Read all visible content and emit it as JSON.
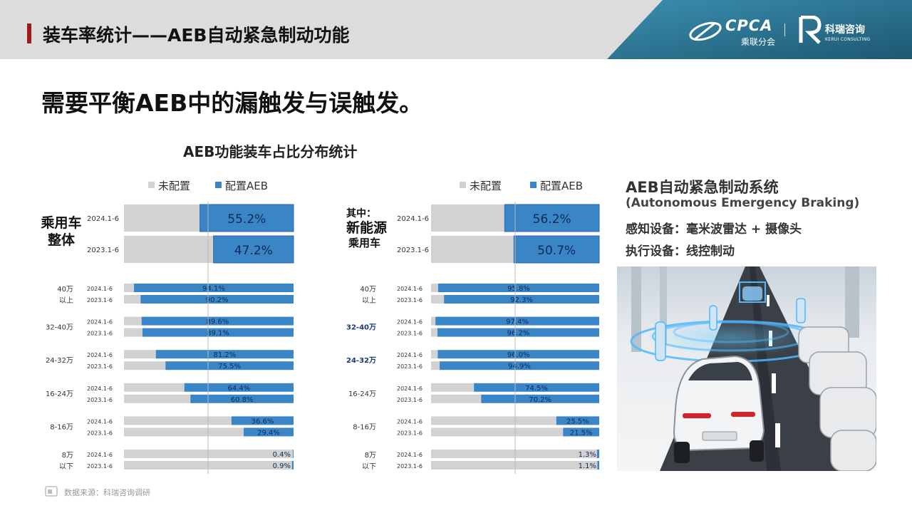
{
  "header": {
    "title": "装车率统计——AEB自动紧急制动功能"
  },
  "logos": {
    "cpca_text": "CPCA",
    "cpca_sub": "乘联分会",
    "kerui_name": "科瑞咨询",
    "kerui_sub": "KERUI CONSULTING"
  },
  "headline": "需要平衡AEB中的漏触发与误触发。",
  "chart_title": "AEB功能装车占比分布统计",
  "legend": {
    "unconfigured": "未配置",
    "configured": "配置AEB"
  },
  "colors": {
    "configured": "#3a85c6",
    "unconfigured": "#d2d2d2",
    "header_bg": "#dcdcdc",
    "accent_red": "#9b1c1c",
    "logo_panel": "#2a6d8b"
  },
  "side_titles": {
    "left_line1": "乘用车",
    "left_line2": "整体",
    "right_line0": "其中：",
    "right_line1": "新能源",
    "right_line2": "乘用车"
  },
  "chart_data": [
    {
      "type": "bar",
      "orientation": "horizontal",
      "stacked": true,
      "group": "乘用车整体",
      "series": [
        {
          "name": "配置AEB"
        },
        {
          "name": "未配置"
        }
      ],
      "summary": [
        {
          "period": "2024.1-6",
          "value": 55.2,
          "label": "55.2%"
        },
        {
          "period": "2023.1-6",
          "value": 47.2,
          "label": "47.2%"
        }
      ],
      "segments": [
        {
          "segment": [
            "40万",
            "以上"
          ],
          "rows": [
            {
              "period": "2024.1-6",
              "value": 94.1,
              "label": "94.1%"
            },
            {
              "period": "2023.1-6",
              "value": 90.2,
              "label": "90.2%"
            }
          ]
        },
        {
          "segment": [
            "32-40万"
          ],
          "rows": [
            {
              "period": "2024.1-6",
              "value": 89.6,
              "label": "89.6%"
            },
            {
              "period": "2023.1-6",
              "value": 89.1,
              "label": "89.1%"
            }
          ]
        },
        {
          "segment": [
            "24-32万"
          ],
          "rows": [
            {
              "period": "2024.1-6",
              "value": 81.2,
              "label": "81.2%"
            },
            {
              "period": "2023.1-6",
              "value": 75.5,
              "label": "75.5%"
            }
          ]
        },
        {
          "segment": [
            "16-24万"
          ],
          "rows": [
            {
              "period": "2024.1-6",
              "value": 64.4,
              "label": "64.4%"
            },
            {
              "period": "2023.1-6",
              "value": 60.8,
              "label": "60.8%"
            }
          ]
        },
        {
          "segment": [
            "8-16万"
          ],
          "rows": [
            {
              "period": "2024.1-6",
              "value": 36.6,
              "label": "36.6%"
            },
            {
              "period": "2023.1-6",
              "value": 29.4,
              "label": "29.4%"
            }
          ]
        },
        {
          "segment": [
            "8万",
            "以下"
          ],
          "rows": [
            {
              "period": "2024.1-6",
              "value": 0.4,
              "label": "0.4%"
            },
            {
              "period": "2023.1-6",
              "value": 0.9,
              "label": "0.9%"
            }
          ]
        }
      ]
    },
    {
      "type": "bar",
      "orientation": "horizontal",
      "stacked": true,
      "group": "其中：新能源乘用车",
      "series": [
        {
          "name": "配置AEB"
        },
        {
          "name": "未配置"
        }
      ],
      "summary": [
        {
          "period": "2024.1-6",
          "value": 56.2,
          "label": "56.2%"
        },
        {
          "period": "2023.1-6",
          "value": 50.7,
          "label": "50.7%"
        }
      ],
      "segments": [
        {
          "segment": [
            "40万",
            "以上"
          ],
          "rows": [
            {
              "period": "2024.1-6",
              "value": 95.8,
              "label": "95.8%"
            },
            {
              "period": "2023.1-6",
              "value": 92.3,
              "label": "92.3%"
            }
          ]
        },
        {
          "segment": [
            "32-40万"
          ],
          "highlight": true,
          "rows": [
            {
              "period": "2024.1-6",
              "value": 97.4,
              "label": "97.4%"
            },
            {
              "period": "2023.1-6",
              "value": 96.2,
              "label": "96.2%"
            }
          ]
        },
        {
          "segment": [
            "24-32万"
          ],
          "highlight": true,
          "rows": [
            {
              "period": "2024.1-6",
              "value": 96.0,
              "label": "96.0%"
            },
            {
              "period": "2023.1-6",
              "value": 94.9,
              "label": "94.9%"
            }
          ]
        },
        {
          "segment": [
            "16-24万"
          ],
          "rows": [
            {
              "period": "2024.1-6",
              "value": 74.5,
              "label": "74.5%"
            },
            {
              "period": "2023.1-6",
              "value": 70.2,
              "label": "70.2%"
            }
          ]
        },
        {
          "segment": [
            "8-16万"
          ],
          "rows": [
            {
              "period": "2024.1-6",
              "value": 25.5,
              "label": "25.5%"
            },
            {
              "period": "2023.1-6",
              "value": 21.5,
              "label": "21.5%"
            }
          ]
        },
        {
          "segment": [
            "8万",
            "以下"
          ],
          "rows": [
            {
              "period": "2024.1-6",
              "value": 1.3,
              "label": "1.3%"
            },
            {
              "period": "2023.1-6",
              "value": 1.1,
              "label": "1.1%"
            }
          ]
        }
      ]
    }
  ],
  "right_panel": {
    "title": "AEB自动紧急制动系统",
    "subtitle": "(Autonomous Emergency Braking)",
    "sensing": "感知设备：毫米波雷达 + 摄像头",
    "actuation": "执行设备：线控制动"
  },
  "source": "数据来源：科瑞咨询调研"
}
